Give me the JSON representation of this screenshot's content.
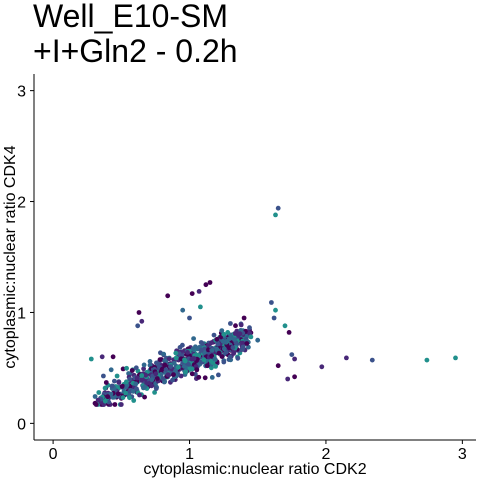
{
  "chart_data": {
    "type": "scatter",
    "title_lines": [
      "Well_E10-SM",
      "+I+Gln2 - 0.2h"
    ],
    "xlabel": "cytoplasmic:nuclear ratio CDK2",
    "ylabel": "cytoplasmic:nuclear ratio CDK4",
    "xlim": [
      -0.14,
      3.1
    ],
    "ylim": [
      -0.15,
      3.15
    ],
    "x_ticks": [
      "0",
      "1",
      "2",
      "3"
    ],
    "y_ticks": [
      "0",
      "1",
      "2",
      "3"
    ],
    "grid": false,
    "legend": "none",
    "colors": [
      "#440154",
      "#3b528b",
      "#21908c",
      "#482878",
      "#31688e"
    ],
    "cloud": {
      "point_count": 700
    },
    "outliers": [
      {
        "x": 1.65,
        "y": 1.94,
        "c": 1
      },
      {
        "x": 1.63,
        "y": 1.88,
        "c": 2
      },
      {
        "x": 1.15,
        "y": 1.27,
        "c": 0
      },
      {
        "x": 1.12,
        "y": 1.25,
        "c": 0
      },
      {
        "x": 1.07,
        "y": 1.19,
        "c": 3
      },
      {
        "x": 0.84,
        "y": 1.15,
        "c": 0
      },
      {
        "x": 1.02,
        "y": 1.17,
        "c": 0
      },
      {
        "x": 0.63,
        "y": 1.0,
        "c": 0
      },
      {
        "x": 0.65,
        "y": 0.92,
        "c": 3
      },
      {
        "x": 0.62,
        "y": 0.88,
        "c": 1
      },
      {
        "x": 1.6,
        "y": 1.09,
        "c": 1
      },
      {
        "x": 1.63,
        "y": 1.02,
        "c": 2
      },
      {
        "x": 1.62,
        "y": 0.95,
        "c": 1
      },
      {
        "x": 1.7,
        "y": 0.88,
        "c": 2
      },
      {
        "x": 1.73,
        "y": 0.82,
        "c": 0
      },
      {
        "x": 1.75,
        "y": 0.62,
        "c": 1
      },
      {
        "x": 1.77,
        "y": 0.58,
        "c": 3
      },
      {
        "x": 1.65,
        "y": 0.52,
        "c": 0
      },
      {
        "x": 1.72,
        "y": 0.4,
        "c": 3
      },
      {
        "x": 1.77,
        "y": 0.42,
        "c": 0
      },
      {
        "x": 1.97,
        "y": 0.51,
        "c": 3
      },
      {
        "x": 2.15,
        "y": 0.59,
        "c": 3
      },
      {
        "x": 2.34,
        "y": 0.57,
        "c": 1
      },
      {
        "x": 2.74,
        "y": 0.57,
        "c": 2
      },
      {
        "x": 2.95,
        "y": 0.59,
        "c": 2
      },
      {
        "x": 0.28,
        "y": 0.58,
        "c": 2
      },
      {
        "x": 0.36,
        "y": 0.6,
        "c": 3
      },
      {
        "x": 0.4,
        "y": 0.24,
        "c": 0
      },
      {
        "x": 0.35,
        "y": 0.22,
        "c": 1
      },
      {
        "x": 0.33,
        "y": 0.21,
        "c": 3
      },
      {
        "x": 1.42,
        "y": 0.72,
        "c": 0
      },
      {
        "x": 1.5,
        "y": 0.75,
        "c": 4
      },
      {
        "x": 1.28,
        "y": 0.82,
        "c": 2
      },
      {
        "x": 1.45,
        "y": 0.78,
        "c": 2
      },
      {
        "x": 0.44,
        "y": 0.6,
        "c": 0
      },
      {
        "x": 1.0,
        "y": 0.95,
        "c": 1
      },
      {
        "x": 1.08,
        "y": 1.05,
        "c": 2
      },
      {
        "x": 0.95,
        "y": 1.02,
        "c": 4
      },
      {
        "x": 1.4,
        "y": 0.95,
        "c": 0
      },
      {
        "x": 1.3,
        "y": 0.9,
        "c": 1
      }
    ]
  }
}
